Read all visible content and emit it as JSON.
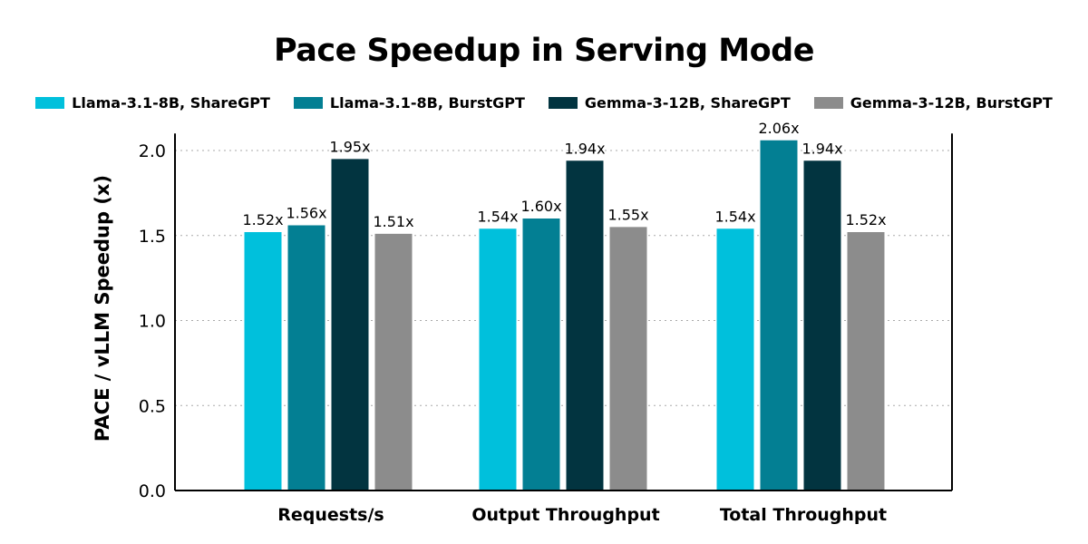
{
  "chart_data": {
    "type": "bar",
    "title": "Pace Speedup in Serving Mode",
    "ylabel": "PACE / vLLM Speedup (x)",
    "xlabel": "",
    "ylim": [
      0,
      2.1
    ],
    "yticks": [
      "0.0",
      "0.5",
      "1.0",
      "1.5",
      "2.0"
    ],
    "grid": "horizontal dotted",
    "legend_position": "top",
    "categories": [
      "Requests/s",
      "Output Throughput",
      "Total Throughput"
    ],
    "series": [
      {
        "name": "Llama-3.1-8B, ShareGPT",
        "color": "#00c0dc",
        "values": [
          1.52,
          1.54,
          1.54
        ],
        "labels": [
          "1.52x",
          "1.54x",
          "1.54x"
        ]
      },
      {
        "name": "Llama-3.1-8B, BurstGPT",
        "color": "#037f93",
        "values": [
          1.56,
          1.6,
          2.06
        ],
        "labels": [
          "1.56x",
          "1.60x",
          "2.06x"
        ]
      },
      {
        "name": "Gemma-3-12B, ShareGPT",
        "color": "#023440",
        "values": [
          1.95,
          1.94,
          1.94
        ],
        "labels": [
          "1.95x",
          "1.94x",
          "1.94x"
        ]
      },
      {
        "name": "Gemma-3-12B, BurstGPT",
        "color": "#8c8c8c",
        "values": [
          1.51,
          1.55,
          1.52
        ],
        "labels": [
          "1.51x",
          "1.55x",
          "1.52x"
        ]
      }
    ]
  }
}
